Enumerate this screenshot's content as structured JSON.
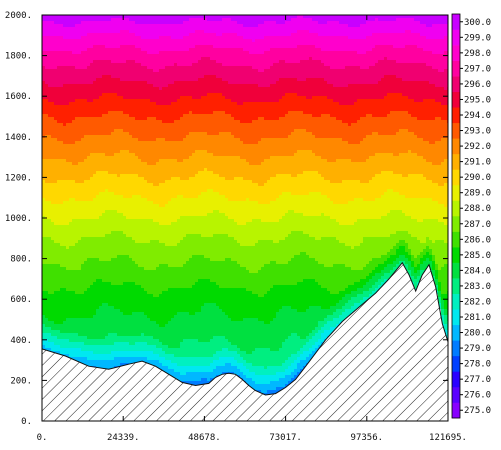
{
  "chart_data": {
    "type": "contour",
    "xlabel": "",
    "ylabel": "",
    "title": "",
    "xlim": [
      0,
      121695
    ],
    "ylim": [
      0,
      2000
    ],
    "x_ticks": [
      "0.",
      "24339.",
      "48678.",
      "73017.",
      "97356.",
      "121695."
    ],
    "x_tick_values": [
      0,
      24339,
      48678,
      73017,
      97356,
      121695
    ],
    "y_ticks": [
      "0.",
      "200.",
      "400.",
      "600.",
      "800.",
      "1000.",
      "1200.",
      "1400.",
      "1600.",
      "1800.",
      "2000."
    ],
    "y_tick_values": [
      0,
      200,
      400,
      600,
      800,
      1000,
      1200,
      1400,
      1600,
      1800,
      2000
    ],
    "colorbar": {
      "min": 274.5,
      "max": 300.5,
      "labels": [
        "275.0",
        "276.0",
        "277.0",
        "278.0",
        "279.0",
        "280.0",
        "281.0",
        "282.0",
        "283.0",
        "284.0",
        "285.0",
        "286.0",
        "287.0",
        "288.0",
        "289.0",
        "290.0",
        "291.0",
        "292.0",
        "293.0",
        "294.0",
        "295.0",
        "296.0",
        "297.0",
        "298.0",
        "299.0",
        "300.0"
      ],
      "values": [
        275,
        276,
        277,
        278,
        279,
        280,
        281,
        282,
        283,
        284,
        285,
        286,
        287,
        288,
        289,
        290,
        291,
        292,
        293,
        294,
        295,
        296,
        297,
        298,
        299,
        300
      ],
      "colors": [
        "#8800ff",
        "#5a00ff",
        "#2a00ff",
        "#0040ff",
        "#007cff",
        "#00b8ff",
        "#00e8f0",
        "#00f0c0",
        "#00ee80",
        "#00e040",
        "#00da00",
        "#40e000",
        "#80ec00",
        "#b8f400",
        "#e8f000",
        "#ffd800",
        "#ffb000",
        "#ff8800",
        "#ff5a00",
        "#ff2000",
        "#f0003a",
        "#f00070",
        "#ff00a0",
        "#ff00cc",
        "#f000f0",
        "#c800ff"
      ]
    },
    "terrain": {
      "x": [
        0,
        7000,
        14000,
        20000,
        26000,
        30000,
        34000,
        38000,
        42000,
        46000,
        50000,
        52000,
        54000,
        56000,
        58000,
        60000,
        62000,
        64000,
        67000,
        70000,
        73000,
        76000,
        80000,
        85000,
        90000,
        95000,
        100000,
        104000,
        108000,
        110000,
        112000,
        114000,
        116000,
        118000,
        120000,
        121695
      ],
      "y": [
        355,
        320,
        270,
        255,
        280,
        295,
        270,
        230,
        190,
        175,
        185,
        215,
        230,
        235,
        230,
        205,
        175,
        150,
        128,
        135,
        165,
        205,
        290,
        400,
        490,
        560,
        630,
        700,
        780,
        720,
        640,
        720,
        770,
        660,
        480,
        390
      ]
    },
    "temperature_profile": {
      "z": [
        0,
        300,
        600,
        900,
        1200,
        1500,
        1800,
        2000
      ],
      "t": [
        281.5,
        283.0,
        285.0,
        287.5,
        290.5,
        293.5,
        297.0,
        300.0
      ]
    }
  }
}
